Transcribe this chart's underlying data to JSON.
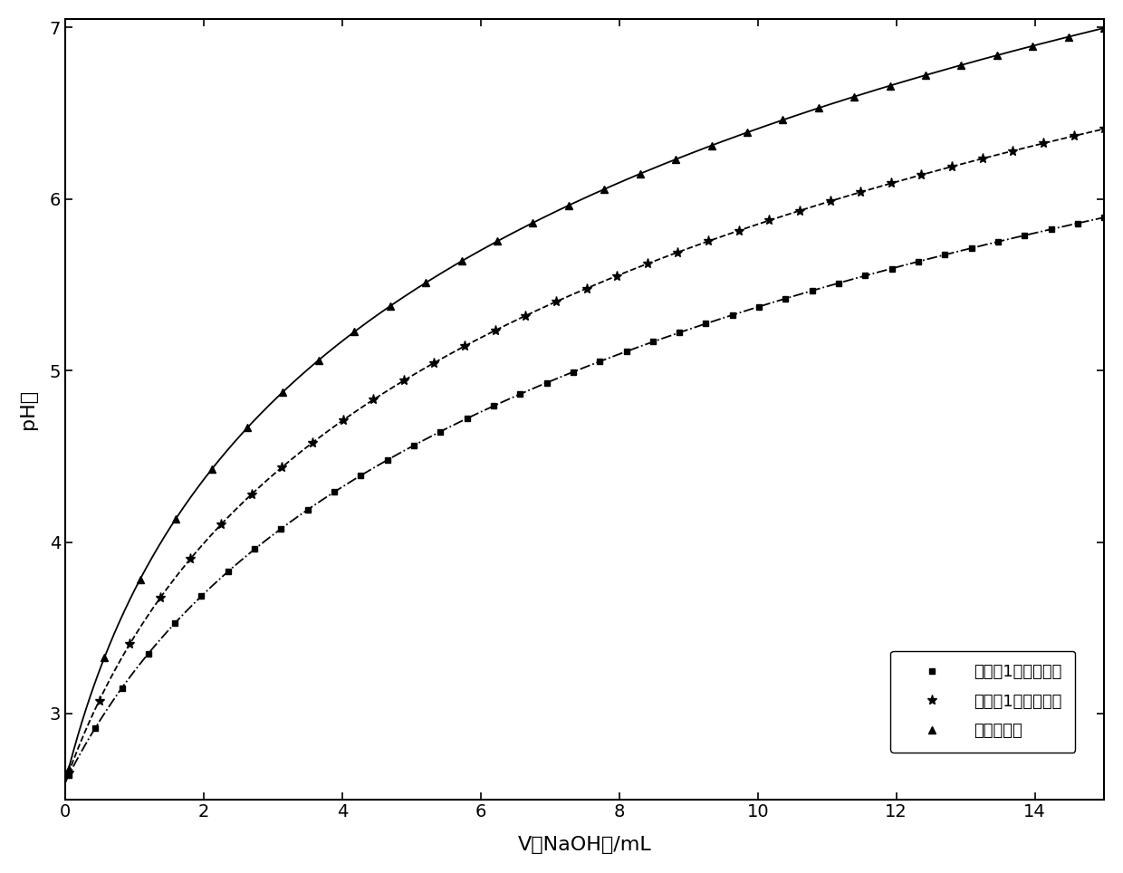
{
  "title": "",
  "xlabel": "V（NaOH）/mL",
  "ylabel": "pH値",
  "xlim": [
    0,
    15
  ],
  "ylim": [
    2.5,
    7.05
  ],
  "xticks": [
    0,
    2,
    4,
    6,
    8,
    10,
    12,
    14
  ],
  "yticks": [
    3,
    4,
    5,
    6,
    7
  ],
  "background_color": "#ffffff",
  "series": [
    {
      "label": "对比例1制得锳鞎剂",
      "linestyle": "-.",
      "marker": "s",
      "color": "#000000",
      "markersize": 5,
      "markevery": 30,
      "curve_a": 1.3,
      "curve_b": 0.38,
      "curve_c": 2.63
    },
    {
      "label": "实施例1制得锳鞎剂",
      "linestyle": "--",
      "marker": "*",
      "color": "#000000",
      "markersize": 8,
      "markevery": 28,
      "curve_a": 1.38,
      "curve_b": 0.52,
      "curve_c": 2.63
    },
    {
      "label": "硫酸锳溶液",
      "linestyle": "-",
      "marker": "^",
      "color": "#000000",
      "markersize": 6,
      "markevery": 25,
      "curve_a": 1.45,
      "curve_b": 0.7,
      "curve_c": 2.63
    }
  ],
  "legend_loc": "lower right",
  "legend_fontsize": 13,
  "xlabel_fontsize": 16,
  "ylabel_fontsize": 16,
  "tick_fontsize": 14
}
